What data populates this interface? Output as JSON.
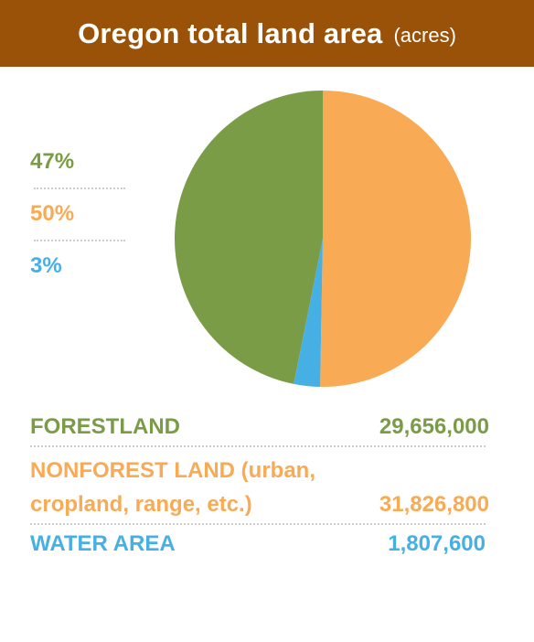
{
  "header": {
    "title": "Oregon total land area",
    "unit": "(acres)"
  },
  "colors": {
    "header_bg": "#9a5208",
    "forest": "#7b9c47",
    "nonforest": "#f9aa55",
    "water": "#46b0e5"
  },
  "chart_data": {
    "type": "pie",
    "title": "Oregon total land area",
    "unit": "(acres)",
    "slices": [
      {
        "label": "NONFOREST LAND (urban, cropland, range, etc.)",
        "value": 31826800,
        "percent_label": "50%",
        "color": "#f9aa55"
      },
      {
        "label": "WATER AREA",
        "value": 1807600,
        "percent_label": "3%",
        "color": "#46b0e5"
      },
      {
        "label": "FORESTLAND",
        "value": 29656000,
        "percent_label": "47%",
        "color": "#7b9c47"
      }
    ]
  },
  "percent_labels": [
    {
      "text": "47%",
      "color": "#7b9c47"
    },
    {
      "text": "50%",
      "color": "#f9aa55"
    },
    {
      "text": "3%",
      "color": "#46b0e5"
    }
  ],
  "legend": [
    {
      "label_line1": "FORESTLAND",
      "label_line2": "",
      "value": "29,656,000",
      "color": "#7b9c47"
    },
    {
      "label_line1": "NONFOREST LAND (urban,",
      "label_line2": "cropland, range, etc.)",
      "value": "31,826,800",
      "color": "#f9aa55"
    },
    {
      "label_line1": "WATER AREA",
      "label_line2": "",
      "value": "1,807,600",
      "color": "#46b0e5"
    }
  ]
}
